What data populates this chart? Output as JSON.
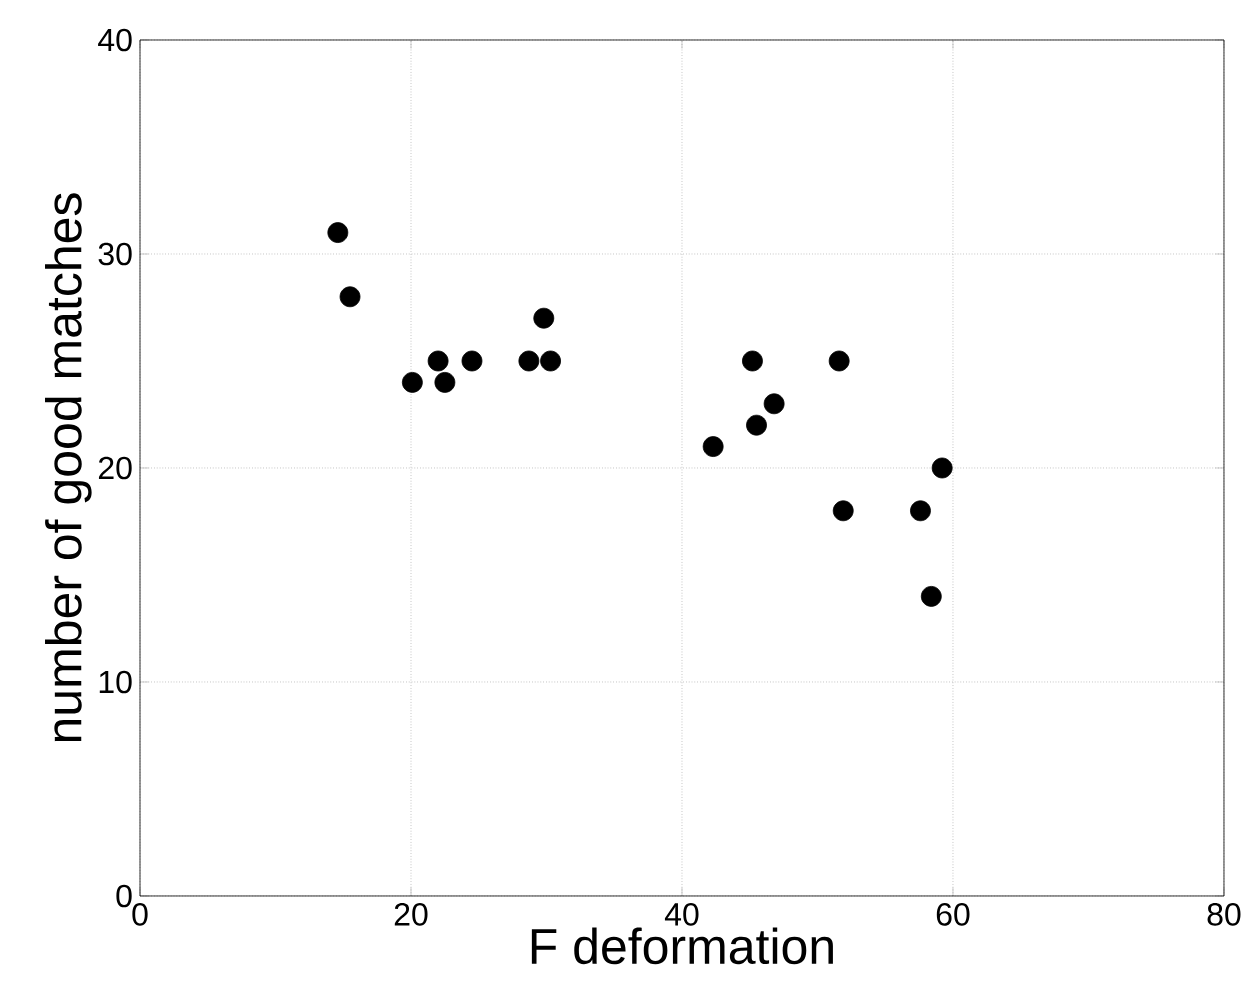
{
  "chart_data": {
    "type": "scatter",
    "xlabel": "F deformation",
    "ylabel": "number of good matches",
    "x": [
      14.6,
      15.5,
      20.1,
      22.0,
      22.5,
      24.5,
      28.7,
      29.8,
      30.3,
      42.3,
      45.2,
      45.5,
      46.8,
      51.6,
      51.9,
      57.6,
      58.4,
      59.2
    ],
    "values": [
      31,
      28,
      24,
      25,
      24,
      25,
      25,
      27,
      25,
      21,
      25,
      22,
      23,
      25,
      18,
      18,
      14,
      20
    ],
    "color": "#000000",
    "marker": "circle",
    "grid": true,
    "xlim": [
      0,
      80
    ],
    "ylim": [
      0,
      40
    ],
    "xticks": [
      0,
      20,
      40,
      60,
      80
    ],
    "yticks": [
      0,
      10,
      20,
      30,
      40
    ]
  }
}
